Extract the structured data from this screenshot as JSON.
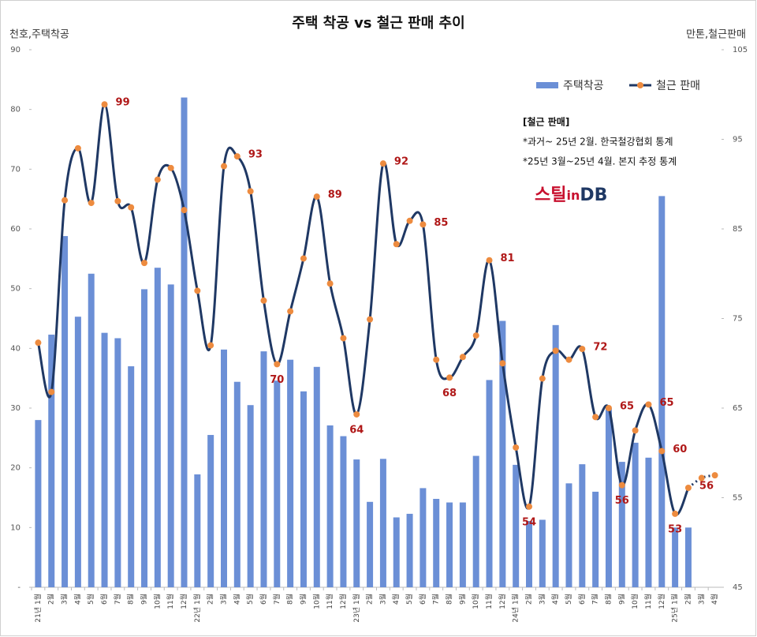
{
  "chart_data": {
    "type": "bar",
    "title": "주택 착공 vs 철근 판매 추이",
    "y_label": "천호,주택착공",
    "y2_label": "만톤,철근판매",
    "categories": [
      "21년 1월",
      "2월",
      "3월",
      "4월",
      "5월",
      "6월",
      "7월",
      "8월",
      "9월",
      "10월",
      "11월",
      "12월",
      "22년 1월",
      "2월",
      "3월",
      "4월",
      "5월",
      "6월",
      "7월",
      "8월",
      "9월",
      "10월",
      "11월",
      "12월",
      "23년 1월",
      "2월",
      "3월",
      "4월",
      "5월",
      "6월",
      "7월",
      "8월",
      "9월",
      "10월",
      "11월",
      "12월",
      "24년 1월",
      "2월",
      "3월",
      "4월",
      "5월",
      "6월",
      "7월",
      "8월",
      "9월",
      "10월",
      "11월",
      "12월",
      "25년 1월",
      "2월",
      "3월",
      "4월"
    ],
    "series": [
      {
        "name": "주택착공",
        "type": "bar",
        "color": "#6b8fd6",
        "values": [
          28,
          42.3,
          58.8,
          45.3,
          52.5,
          42.6,
          41.7,
          37,
          49.9,
          53.5,
          50.7,
          82,
          18.9,
          25.5,
          39.8,
          34.4,
          30.5,
          39.5,
          34.6,
          38.1,
          32.8,
          36.9,
          27.1,
          25.3,
          21.4,
          14.3,
          21.5,
          11.7,
          12.3,
          16.6,
          14.8,
          14.2,
          14.2,
          22,
          34.7,
          44.6,
          20.5,
          11.1,
          11.3,
          43.9,
          17.4,
          20.6,
          16,
          30,
          21,
          24.2,
          21.7,
          65.5,
          10,
          10,
          null,
          null
        ]
      },
      {
        "name": "철근 판매",
        "type": "line",
        "axis": "y2",
        "color": "#1f3864",
        "marker_color": "#ed8b3f",
        "values": [
          72.3,
          66.8,
          88.2,
          94,
          87.9,
          98.9,
          88.1,
          87.4,
          81.2,
          90.5,
          91.8,
          87.1,
          78.1,
          72,
          92,
          93.1,
          89.2,
          77,
          69.9,
          75.8,
          81.7,
          88.6,
          78.9,
          72.8,
          64.3,
          74.9,
          92.3,
          83.3,
          85.9,
          85.5,
          70.4,
          68.4,
          70.7,
          73.1,
          81.5,
          70,
          60.6,
          54,
          68.3,
          71.4,
          70.4,
          71.6,
          64,
          65,
          56.4,
          62.5,
          65.4,
          60.2,
          53.2,
          56.1,
          57.2,
          57.5
        ],
        "value_labels": [
          null,
          null,
          null,
          null,
          null,
          "99",
          null,
          null,
          null,
          null,
          null,
          null,
          null,
          null,
          null,
          "93",
          null,
          null,
          "70",
          null,
          null,
          "89",
          null,
          null,
          "64",
          null,
          "92",
          null,
          null,
          "85",
          null,
          "68",
          null,
          null,
          "81",
          null,
          null,
          "54",
          null,
          null,
          null,
          "72",
          null,
          "65",
          "56",
          null,
          "65",
          "60",
          "53",
          "56",
          null,
          null
        ]
      }
    ],
    "ylim": [
      0,
      90
    ],
    "yticks": [
      {
        "value": 0,
        "label": "-"
      },
      10,
      20,
      30,
      40,
      50,
      60,
      70,
      80,
      90
    ],
    "y2lim": [
      45,
      105
    ],
    "y2ticks": [
      45,
      55,
      65,
      75,
      85,
      95,
      105
    ],
    "legend": "top-right",
    "annotations": [
      "[철근 판매]",
      "*과거~ 25년 2월. 한국철강협회 통계",
      "*25년 3월~25년 4월. 본지 추정 통계"
    ],
    "logo": [
      "스틸",
      "in",
      "DB"
    ]
  }
}
